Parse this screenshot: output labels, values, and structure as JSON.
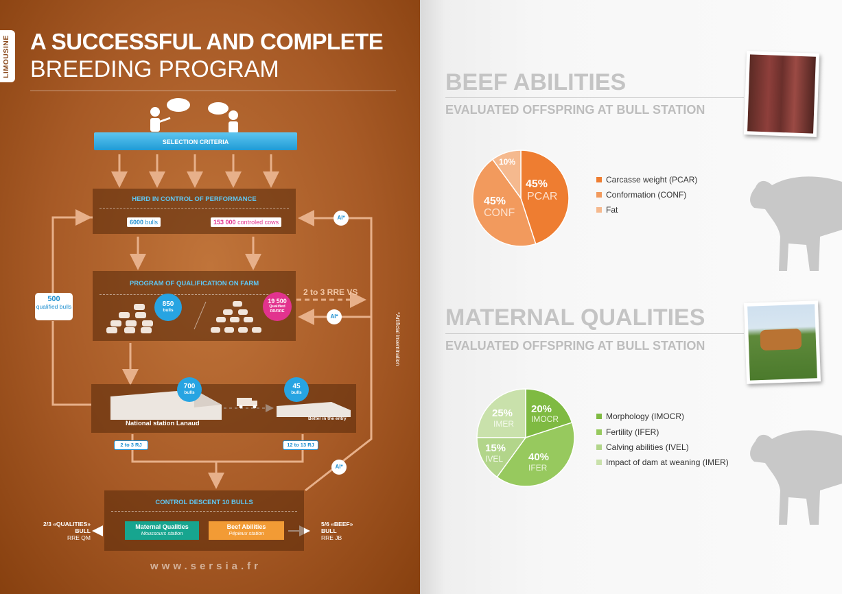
{
  "left": {
    "tab": "LIMOUSINE",
    "title_line1": "A SUCCESSFUL AND COMPLETE",
    "title_line2": "BREEDING PROGRAM",
    "selection_criteria": "SELECTION CRITERIA",
    "herd_title": "HERD IN CONTROL OF PERFORMANCE",
    "bulls_value": "6000",
    "bulls_label": "bulls",
    "cows_value": "153 000",
    "cows_label": "controled cows",
    "ai_label": "AI*",
    "qualified_500_value": "500",
    "qualified_500_label": "qualified bulls",
    "program_title": "PROGRAM OF QUALIFICATION ON FARM",
    "bulls850_value": "850",
    "bulls850_label": "bulls",
    "q19500_value": "19 500",
    "q19500_label": "Qualified RR/RRE",
    "rre_vs": "2 to 3 RRE VS",
    "artificial": "*Artificial insemination",
    "bulls700_value": "700",
    "bulls700_label": "bulls",
    "bulls45_value": "45",
    "bulls45_label": "bulls",
    "national_station": "National station Lanaud",
    "better_entry": "Better in the entry",
    "rj_left": "2 to 3 RJ",
    "rj_right": "12 to 13 RJ",
    "control_title": "CONTROL DESCENT 10 BULLS",
    "maternal_title": "Maternal Qualities",
    "maternal_sub": "Moussours station",
    "beef_title": "Beef Abilities",
    "beef_sub": "Pépieux station",
    "out_left_1": "2/3 «QUALITIES»",
    "out_left_2": "BULL",
    "out_left_3": "RRE QM",
    "out_right_1": "5/6 «BEEF»",
    "out_right_2": "BULL",
    "out_right_3": "RRE JB",
    "url": "www.sersia.fr"
  },
  "beef": {
    "title": "BEEF ABILITIES",
    "subtitle": "EVALUATED OFFSPRING AT BULL STATION",
    "slices": [
      {
        "pct": "45%",
        "abbr": "PCAR",
        "value": 45,
        "color": "#ee7d31",
        "legend": "Carcasse weight (PCAR)"
      },
      {
        "pct": "45%",
        "abbr": "CONF",
        "value": 45,
        "color": "#f29a5d",
        "legend": "Conformation (CONF)"
      },
      {
        "pct": "10%",
        "abbr": "",
        "value": 10,
        "color": "#f5b98e",
        "legend": "Fat"
      }
    ]
  },
  "maternal": {
    "title": "MATERNAL QUALITIES",
    "subtitle": "EVALUATED OFFSPRING AT BULL STATION",
    "slices": [
      {
        "pct": "20%",
        "abbr": "IMOCR",
        "value": 20,
        "color": "#7fba42",
        "legend": "Morphology (IMOCR)"
      },
      {
        "pct": "40%",
        "abbr": "IFER",
        "value": 40,
        "color": "#97c95e",
        "legend": "Fertility (IFER)"
      },
      {
        "pct": "15%",
        "abbr": "IVEL",
        "value": 15,
        "color": "#b2d58a",
        "legend": "Calving abilities (IVEL)"
      },
      {
        "pct": "25%",
        "abbr": "IMER",
        "value": 25,
        "color": "#c9e1ab",
        "legend": "Impact of dam at weaning (IMER)"
      }
    ]
  }
}
